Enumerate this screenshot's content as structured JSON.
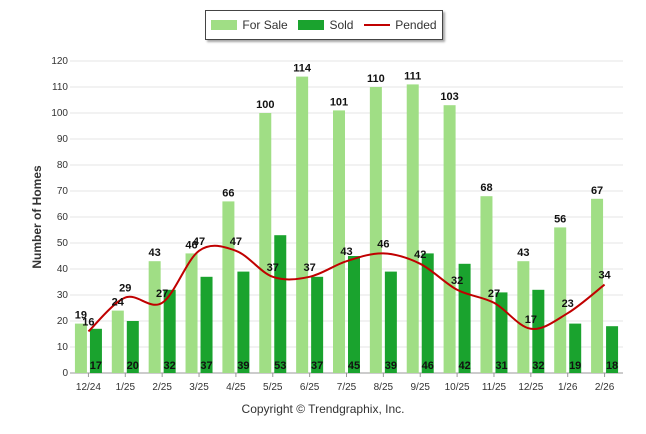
{
  "chart_data": {
    "type": "bar",
    "categories": [
      "12/24",
      "1/25",
      "2/25",
      "3/25",
      "4/25",
      "5/25",
      "6/25",
      "7/25",
      "8/25",
      "9/25",
      "10/25",
      "11/25",
      "12/25",
      "1/26",
      "2/26"
    ],
    "series": [
      {
        "name": "For Sale",
        "type": "bar",
        "color": "#a0de85",
        "values": [
          19,
          24,
          43,
          46,
          66,
          100,
          114,
          101,
          110,
          111,
          103,
          68,
          43,
          56,
          67
        ]
      },
      {
        "name": "Sold",
        "type": "bar",
        "color": "#1aa32e",
        "values": [
          17,
          20,
          32,
          37,
          39,
          53,
          37,
          45,
          39,
          46,
          42,
          31,
          32,
          19,
          18
        ]
      },
      {
        "name": "Pended",
        "type": "line",
        "color": "#c00000",
        "values": [
          16,
          29,
          27,
          47,
          47,
          37,
          37,
          43,
          46,
          42,
          32,
          27,
          17,
          23,
          34
        ]
      }
    ],
    "title": "",
    "xlabel": "",
    "ylabel": "Number of Homes",
    "ylim": [
      0,
      120
    ],
    "yticks": [
      0,
      10,
      20,
      30,
      40,
      50,
      60,
      70,
      80,
      90,
      100,
      110,
      120
    ],
    "grid": true,
    "legend_position": "top-center"
  },
  "footer": {
    "copyright": "Copyright © Trendgraphix, Inc."
  }
}
